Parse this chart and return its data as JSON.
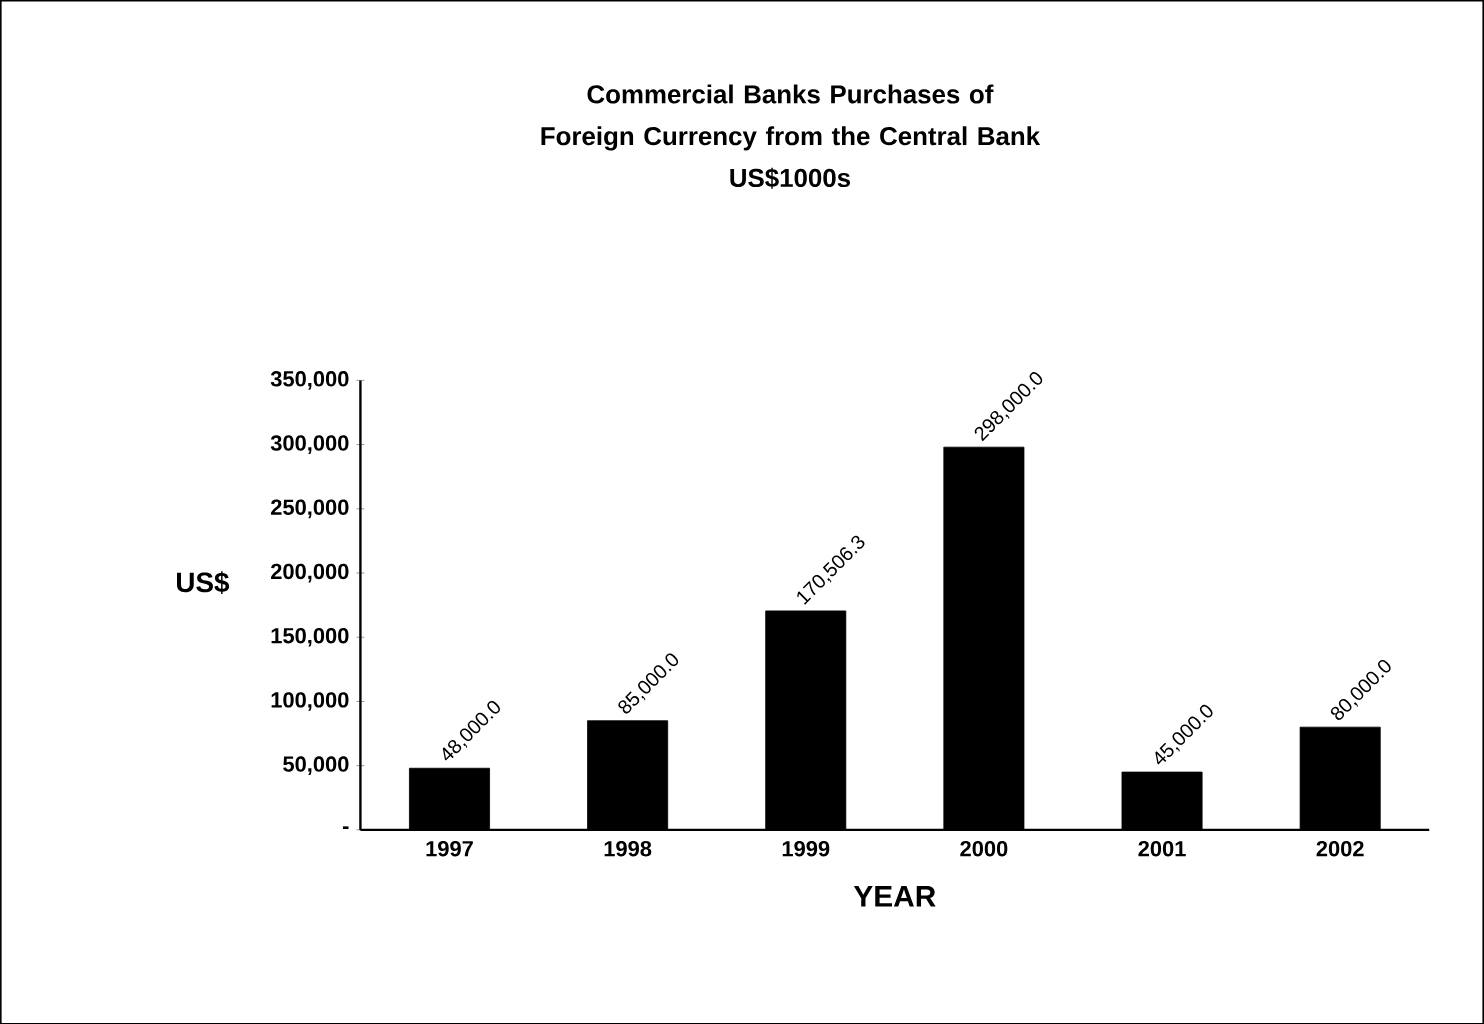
{
  "chart_data": {
    "type": "bar",
    "title": "Commercial Banks Purchases of Foreign Currency from the Central Bank",
    "subtitle": "US$1000s",
    "xlabel": "YEAR",
    "ylabel": "US$",
    "categories": [
      "1997",
      "1998",
      "1999",
      "2000",
      "2001",
      "2002"
    ],
    "values": [
      48000,
      85000,
      170506.3,
      298000,
      45000,
      80000
    ],
    "value_labels": [
      "48,000.0",
      "85,000.0",
      "170,506.3",
      "298,000.0",
      "45,000.0",
      "80,000.0"
    ],
    "color": "#000000",
    "ylim": [
      0,
      350000
    ],
    "yticks": [
      {
        "value": 0,
        "label": "-"
      },
      {
        "value": 50000,
        "label": "50,000"
      },
      {
        "value": 100000,
        "label": "100,000"
      },
      {
        "value": 150000,
        "label": "150,000"
      },
      {
        "value": 200000,
        "label": "200,000"
      },
      {
        "value": 250000,
        "label": "250,000"
      },
      {
        "value": 300000,
        "label": "300,000"
      },
      {
        "value": 350000,
        "label": "350,000"
      }
    ],
    "grid": false
  }
}
